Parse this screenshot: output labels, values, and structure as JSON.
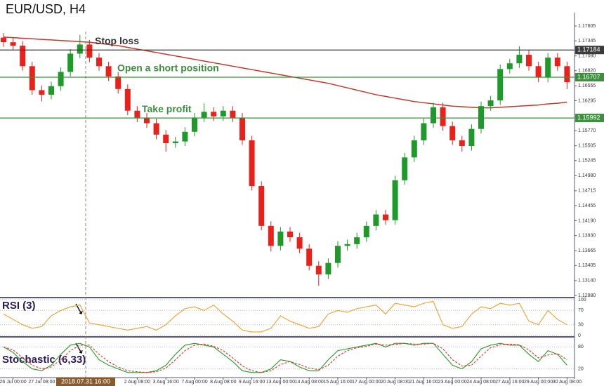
{
  "chart_data": [
    {
      "type": "candlestick",
      "title": "EUR/USD, H4",
      "crosshair": "2018.07.31 16:00",
      "categories": [
        null,
        "26 Jul 00:00",
        null,
        null,
        "27 Jul 08:00",
        null,
        null,
        null,
        null,
        null,
        null,
        null,
        null,
        null,
        "2 Aug 08:00",
        null,
        null,
        "3 Aug 16:00",
        null,
        null,
        "7 Aug 00:00",
        null,
        null,
        "8 Aug 08:00",
        null,
        null,
        "9 Aug 16:00",
        null,
        null,
        "13 Aug 00:00",
        null,
        null,
        "14 Aug 08:00",
        null,
        null,
        "15 Aug 16:00",
        null,
        null,
        "17 Aug 00:00",
        null,
        null,
        "20 Aug 08:00",
        null,
        null,
        "21 Aug 16:00",
        null,
        null,
        "23 Aug 00:00",
        null,
        null,
        "24 Aug 08:00",
        null,
        null,
        "27 Aug 16:00",
        null,
        null,
        "29 Aug 00:00",
        null,
        null,
        "30 Aug 08:00"
      ],
      "open": [
        1.174,
        1.1732,
        1.1726,
        1.169,
        1.1648,
        1.164,
        1.1655,
        1.168,
        1.1712,
        1.1728,
        1.1705,
        1.169,
        1.1672,
        1.165,
        1.1612,
        1.16,
        1.159,
        1.157,
        1.1555,
        1.1558,
        1.1575,
        1.16,
        1.161,
        1.1602,
        1.1612,
        1.16,
        1.156,
        1.148,
        1.141,
        1.1375,
        1.14,
        1.139,
        1.137,
        1.134,
        1.1325,
        1.1345,
        1.1375,
        1.1378,
        1.139,
        1.141,
        1.143,
        1.142,
        1.149,
        1.153,
        1.156,
        1.159,
        1.1618,
        1.1585,
        1.156,
        1.155,
        1.158,
        1.162,
        1.163,
        1.1685,
        1.1695,
        1.171,
        1.169,
        1.167,
        1.1705,
        1.169
      ],
      "high": [
        1.1748,
        1.174,
        1.1734,
        1.1698,
        1.1656,
        1.1663,
        1.1688,
        1.172,
        1.1745,
        1.1736,
        1.1713,
        1.1698,
        1.168,
        1.1658,
        1.162,
        1.1608,
        1.1598,
        1.1578,
        1.1566,
        1.1583,
        1.1608,
        1.1625,
        1.1618,
        1.162,
        1.162,
        1.1608,
        1.1568,
        1.1488,
        1.1418,
        1.1408,
        1.1408,
        1.1398,
        1.1378,
        1.1348,
        1.1353,
        1.1383,
        1.1386,
        1.1398,
        1.1418,
        1.1438,
        1.1438,
        1.1498,
        1.1538,
        1.1568,
        1.1598,
        1.1626,
        1.1626,
        1.1593,
        1.1568,
        1.1588,
        1.1628,
        1.1638,
        1.1693,
        1.1703,
        1.1725,
        1.1718,
        1.1698,
        1.1713,
        1.1713,
        1.1698
      ],
      "low": [
        1.1724,
        1.1718,
        1.1682,
        1.164,
        1.1628,
        1.1632,
        1.1647,
        1.1672,
        1.1704,
        1.1697,
        1.1682,
        1.1664,
        1.1642,
        1.1604,
        1.1592,
        1.1582,
        1.1562,
        1.154,
        1.1547,
        1.155,
        1.1567,
        1.1592,
        1.1594,
        1.1594,
        1.1592,
        1.1552,
        1.1472,
        1.1402,
        1.1365,
        1.1367,
        1.1382,
        1.1362,
        1.1332,
        1.1305,
        1.1317,
        1.1337,
        1.1367,
        1.137,
        1.1382,
        1.1402,
        1.1412,
        1.1412,
        1.1482,
        1.1522,
        1.1552,
        1.1582,
        1.1577,
        1.1552,
        1.154,
        1.1542,
        1.1572,
        1.1612,
        1.1622,
        1.1677,
        1.1687,
        1.1682,
        1.1662,
        1.1662,
        1.1682,
        1.165
      ],
      "close": [
        1.1732,
        1.1726,
        1.169,
        1.1648,
        1.164,
        1.1655,
        1.168,
        1.1712,
        1.1728,
        1.1705,
        1.169,
        1.1672,
        1.165,
        1.1612,
        1.16,
        1.159,
        1.157,
        1.1555,
        1.1558,
        1.1575,
        1.16,
        1.161,
        1.1602,
        1.1612,
        1.16,
        1.156,
        1.148,
        1.141,
        1.1375,
        1.14,
        1.139,
        1.137,
        1.134,
        1.1325,
        1.1345,
        1.1375,
        1.1378,
        1.139,
        1.141,
        1.143,
        1.142,
        1.149,
        1.153,
        1.156,
        1.159,
        1.1618,
        1.1585,
        1.156,
        1.155,
        1.158,
        1.162,
        1.163,
        1.1685,
        1.1695,
        1.171,
        1.169,
        1.167,
        1.1705,
        1.169,
        1.1662
      ],
      "up_color": "#1f9a2a",
      "down_color": "#e8221b",
      "moving_average": {
        "color": "#c0392b",
        "values": [
          1.1741,
          1.174,
          1.1739,
          1.1738,
          1.1737,
          1.1736,
          1.1735,
          1.1734,
          1.1733,
          1.1732,
          1.173,
          1.1728,
          1.1726,
          1.1723,
          1.172,
          1.1717,
          1.1714,
          1.1711,
          1.1708,
          1.1705,
          1.1702,
          1.1699,
          1.1696,
          1.1693,
          1.169,
          1.1687,
          1.1684,
          1.1681,
          1.1678,
          1.1675,
          1.1672,
          1.1669,
          1.1666,
          1.1663,
          1.166,
          1.1656,
          1.1652,
          1.1648,
          1.1644,
          1.164,
          1.1637,
          1.1634,
          1.1631,
          1.1628,
          1.1626,
          1.1624,
          1.1622,
          1.162,
          1.1619,
          1.1618,
          1.1617,
          1.1617,
          1.1618,
          1.1619,
          1.162,
          1.1621,
          1.1622,
          1.1624,
          1.1625,
          1.1627
        ]
      },
      "levels": [
        {
          "label": "Stop loss",
          "value": 1.17184,
          "color": "#3a3a3a"
        },
        {
          "label": "Open a short position",
          "value": 1.16707,
          "color": "#3c8f3c"
        },
        {
          "label": "Take profit",
          "value": 1.15992,
          "color": "#3c8f3c"
        }
      ],
      "ylim": [
        1.12843,
        1.17839
      ],
      "yticks": [
        {
          "value": 1.17605,
          "label": "1.17605"
        },
        {
          "value": 1.17345,
          "label": "1.17345"
        },
        {
          "value": 1.1708,
          "label": "1.17080"
        },
        {
          "value": 1.1682,
          "label": "1.16820"
        },
        {
          "value": 1.16555,
          "label": "1.16555"
        },
        {
          "value": 1.16295,
          "label": "1.16295"
        },
        {
          "value": 1.1577,
          "label": "1.15770"
        },
        {
          "value": 1.15505,
          "label": "1.15505"
        },
        {
          "value": 1.15245,
          "label": "1.15245"
        },
        {
          "value": 1.1498,
          "label": "1.14980"
        },
        {
          "value": 1.14715,
          "label": "1.14715"
        },
        {
          "value": 1.14455,
          "label": "1.14455"
        },
        {
          "value": 1.1419,
          "label": "1.14190"
        },
        {
          "value": 1.1393,
          "label": "1.13930"
        },
        {
          "value": 1.13665,
          "label": "1.13665"
        },
        {
          "value": 1.13405,
          "label": "1.13405"
        },
        {
          "value": 1.1314,
          "label": "1.13140"
        },
        {
          "value": 1.1288,
          "label": "1.12880"
        }
      ]
    },
    {
      "type": "line",
      "title": "RSI (3)",
      "ylim": [
        0,
        100
      ],
      "yticks": [
        0,
        30,
        70,
        100
      ],
      "series": [
        {
          "color": "#f0a030",
          "values": [
            60,
            45,
            30,
            20,
            25,
            55,
            70,
            80,
            85,
            35,
            30,
            25,
            20,
            15,
            20,
            25,
            15,
            30,
            55,
            75,
            80,
            70,
            85,
            60,
            40,
            15,
            10,
            10,
            20,
            55,
            40,
            30,
            20,
            25,
            60,
            70,
            65,
            75,
            80,
            85,
            60,
            90,
            85,
            80,
            90,
            95,
            30,
            20,
            25,
            60,
            80,
            75,
            90,
            85,
            90,
            40,
            30,
            70,
            45,
            30
          ]
        }
      ]
    },
    {
      "type": "line",
      "title": "Stochastic (6,33)",
      "ylim": [
        0,
        100
      ],
      "yticks": [
        20,
        80
      ],
      "series": [
        {
          "color": "#2a9a2a",
          "values": [
            80,
            65,
            40,
            20,
            15,
            30,
            60,
            85,
            90,
            80,
            45,
            30,
            20,
            10,
            10,
            10,
            15,
            30,
            60,
            85,
            90,
            85,
            80,
            60,
            40,
            15,
            10,
            10,
            20,
            45,
            40,
            25,
            15,
            15,
            45,
            70,
            75,
            80,
            85,
            90,
            80,
            90,
            90,
            85,
            90,
            90,
            60,
            30,
            20,
            40,
            75,
            85,
            90,
            85,
            85,
            60,
            40,
            70,
            60,
            30
          ]
        },
        {
          "color": "#e03030",
          "dashed": true,
          "values": [
            80,
            72,
            50,
            30,
            20,
            25,
            45,
            70,
            85,
            85,
            60,
            40,
            25,
            15,
            12,
            10,
            12,
            22,
            45,
            70,
            85,
            88,
            82,
            70,
            50,
            28,
            15,
            10,
            15,
            32,
            40,
            32,
            22,
            18,
            30,
            55,
            70,
            78,
            82,
            88,
            85,
            87,
            90,
            88,
            88,
            90,
            75,
            45,
            28,
            30,
            55,
            78,
            86,
            88,
            86,
            72,
            50,
            58,
            62,
            45
          ]
        }
      ]
    }
  ]
}
